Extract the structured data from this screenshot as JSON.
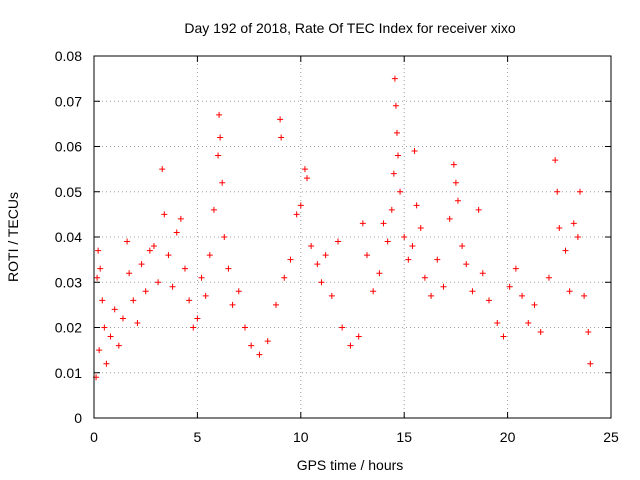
{
  "chart_data": {
    "type": "scatter",
    "title": "Day 192 of 2018, Rate Of TEC Index for receiver xixo",
    "xlabel": "GPS time / hours",
    "ylabel": "ROTI / TECUs",
    "xlim": [
      0,
      25
    ],
    "ylim": [
      0,
      0.08
    ],
    "grid": true,
    "marker": "+",
    "color": "#ff0000",
    "x_ticks": [
      0,
      5,
      10,
      15,
      20,
      25
    ],
    "x_tick_labels": [
      "0",
      "5",
      "10",
      "15",
      "20",
      "25"
    ],
    "y_ticks": [
      0,
      0.01,
      0.02,
      0.03,
      0.04,
      0.05,
      0.06,
      0.07,
      0.08
    ],
    "y_tick_labels": [
      "0",
      "0.01",
      "0.02",
      "0.03",
      "0.04",
      "0.05",
      "0.06",
      "0.07",
      "0.08"
    ],
    "series": [
      {
        "name": "ROTI",
        "points": [
          [
            0.1,
            0.009
          ],
          [
            0.15,
            0.031
          ],
          [
            0.2,
            0.037
          ],
          [
            0.25,
            0.015
          ],
          [
            0.3,
            0.033
          ],
          [
            0.4,
            0.026
          ],
          [
            0.5,
            0.02
          ],
          [
            0.6,
            0.012
          ],
          [
            0.8,
            0.018
          ],
          [
            1.0,
            0.024
          ],
          [
            1.2,
            0.016
          ],
          [
            1.4,
            0.022
          ],
          [
            1.6,
            0.039
          ],
          [
            1.7,
            0.032
          ],
          [
            1.9,
            0.026
          ],
          [
            2.1,
            0.021
          ],
          [
            2.3,
            0.034
          ],
          [
            2.5,
            0.028
          ],
          [
            2.7,
            0.037
          ],
          [
            2.9,
            0.038
          ],
          [
            3.1,
            0.03
          ],
          [
            3.3,
            0.055
          ],
          [
            3.4,
            0.045
          ],
          [
            3.6,
            0.036
          ],
          [
            3.8,
            0.029
          ],
          [
            4.0,
            0.041
          ],
          [
            4.2,
            0.044
          ],
          [
            4.4,
            0.033
          ],
          [
            4.6,
            0.026
          ],
          [
            4.8,
            0.02
          ],
          [
            5.0,
            0.022
          ],
          [
            5.2,
            0.031
          ],
          [
            5.4,
            0.027
          ],
          [
            5.6,
            0.036
          ],
          [
            5.8,
            0.046
          ],
          [
            6.0,
            0.058
          ],
          [
            6.05,
            0.067
          ],
          [
            6.1,
            0.062
          ],
          [
            6.2,
            0.052
          ],
          [
            6.3,
            0.04
          ],
          [
            6.5,
            0.033
          ],
          [
            6.7,
            0.025
          ],
          [
            7.0,
            0.028
          ],
          [
            7.3,
            0.02
          ],
          [
            7.6,
            0.016
          ],
          [
            8.0,
            0.014
          ],
          [
            8.4,
            0.017
          ],
          [
            8.8,
            0.025
          ],
          [
            9.0,
            0.066
          ],
          [
            9.05,
            0.062
          ],
          [
            9.2,
            0.031
          ],
          [
            9.5,
            0.035
          ],
          [
            9.8,
            0.045
          ],
          [
            10.0,
            0.047
          ],
          [
            10.2,
            0.055
          ],
          [
            10.3,
            0.053
          ],
          [
            10.5,
            0.038
          ],
          [
            10.8,
            0.034
          ],
          [
            11.0,
            0.03
          ],
          [
            11.2,
            0.036
          ],
          [
            11.5,
            0.027
          ],
          [
            11.8,
            0.039
          ],
          [
            12.0,
            0.02
          ],
          [
            12.4,
            0.016
          ],
          [
            12.8,
            0.018
          ],
          [
            13.0,
            0.043
          ],
          [
            13.2,
            0.036
          ],
          [
            13.5,
            0.028
          ],
          [
            13.8,
            0.032
          ],
          [
            14.0,
            0.043
          ],
          [
            14.2,
            0.039
          ],
          [
            14.4,
            0.046
          ],
          [
            14.5,
            0.054
          ],
          [
            14.55,
            0.075
          ],
          [
            14.6,
            0.069
          ],
          [
            14.65,
            0.063
          ],
          [
            14.7,
            0.058
          ],
          [
            14.8,
            0.05
          ],
          [
            15.0,
            0.04
          ],
          [
            15.2,
            0.035
          ],
          [
            15.4,
            0.038
          ],
          [
            15.5,
            0.059
          ],
          [
            15.6,
            0.047
          ],
          [
            15.8,
            0.042
          ],
          [
            16.0,
            0.031
          ],
          [
            16.3,
            0.027
          ],
          [
            16.6,
            0.035
          ],
          [
            16.9,
            0.029
          ],
          [
            17.2,
            0.044
          ],
          [
            17.4,
            0.056
          ],
          [
            17.5,
            0.052
          ],
          [
            17.6,
            0.048
          ],
          [
            17.8,
            0.038
          ],
          [
            18.0,
            0.034
          ],
          [
            18.3,
            0.028
          ],
          [
            18.6,
            0.046
          ],
          [
            18.8,
            0.032
          ],
          [
            19.1,
            0.026
          ],
          [
            19.5,
            0.021
          ],
          [
            19.8,
            0.018
          ],
          [
            20.1,
            0.029
          ],
          [
            20.4,
            0.033
          ],
          [
            20.7,
            0.027
          ],
          [
            21.0,
            0.021
          ],
          [
            21.3,
            0.025
          ],
          [
            21.6,
            0.019
          ],
          [
            22.0,
            0.031
          ],
          [
            22.3,
            0.057
          ],
          [
            22.4,
            0.05
          ],
          [
            22.5,
            0.042
          ],
          [
            22.8,
            0.037
          ],
          [
            23.0,
            0.028
          ],
          [
            23.2,
            0.043
          ],
          [
            23.4,
            0.04
          ],
          [
            23.5,
            0.05
          ],
          [
            23.7,
            0.027
          ],
          [
            23.9,
            0.019
          ],
          [
            24.0,
            0.012
          ]
        ]
      }
    ]
  }
}
